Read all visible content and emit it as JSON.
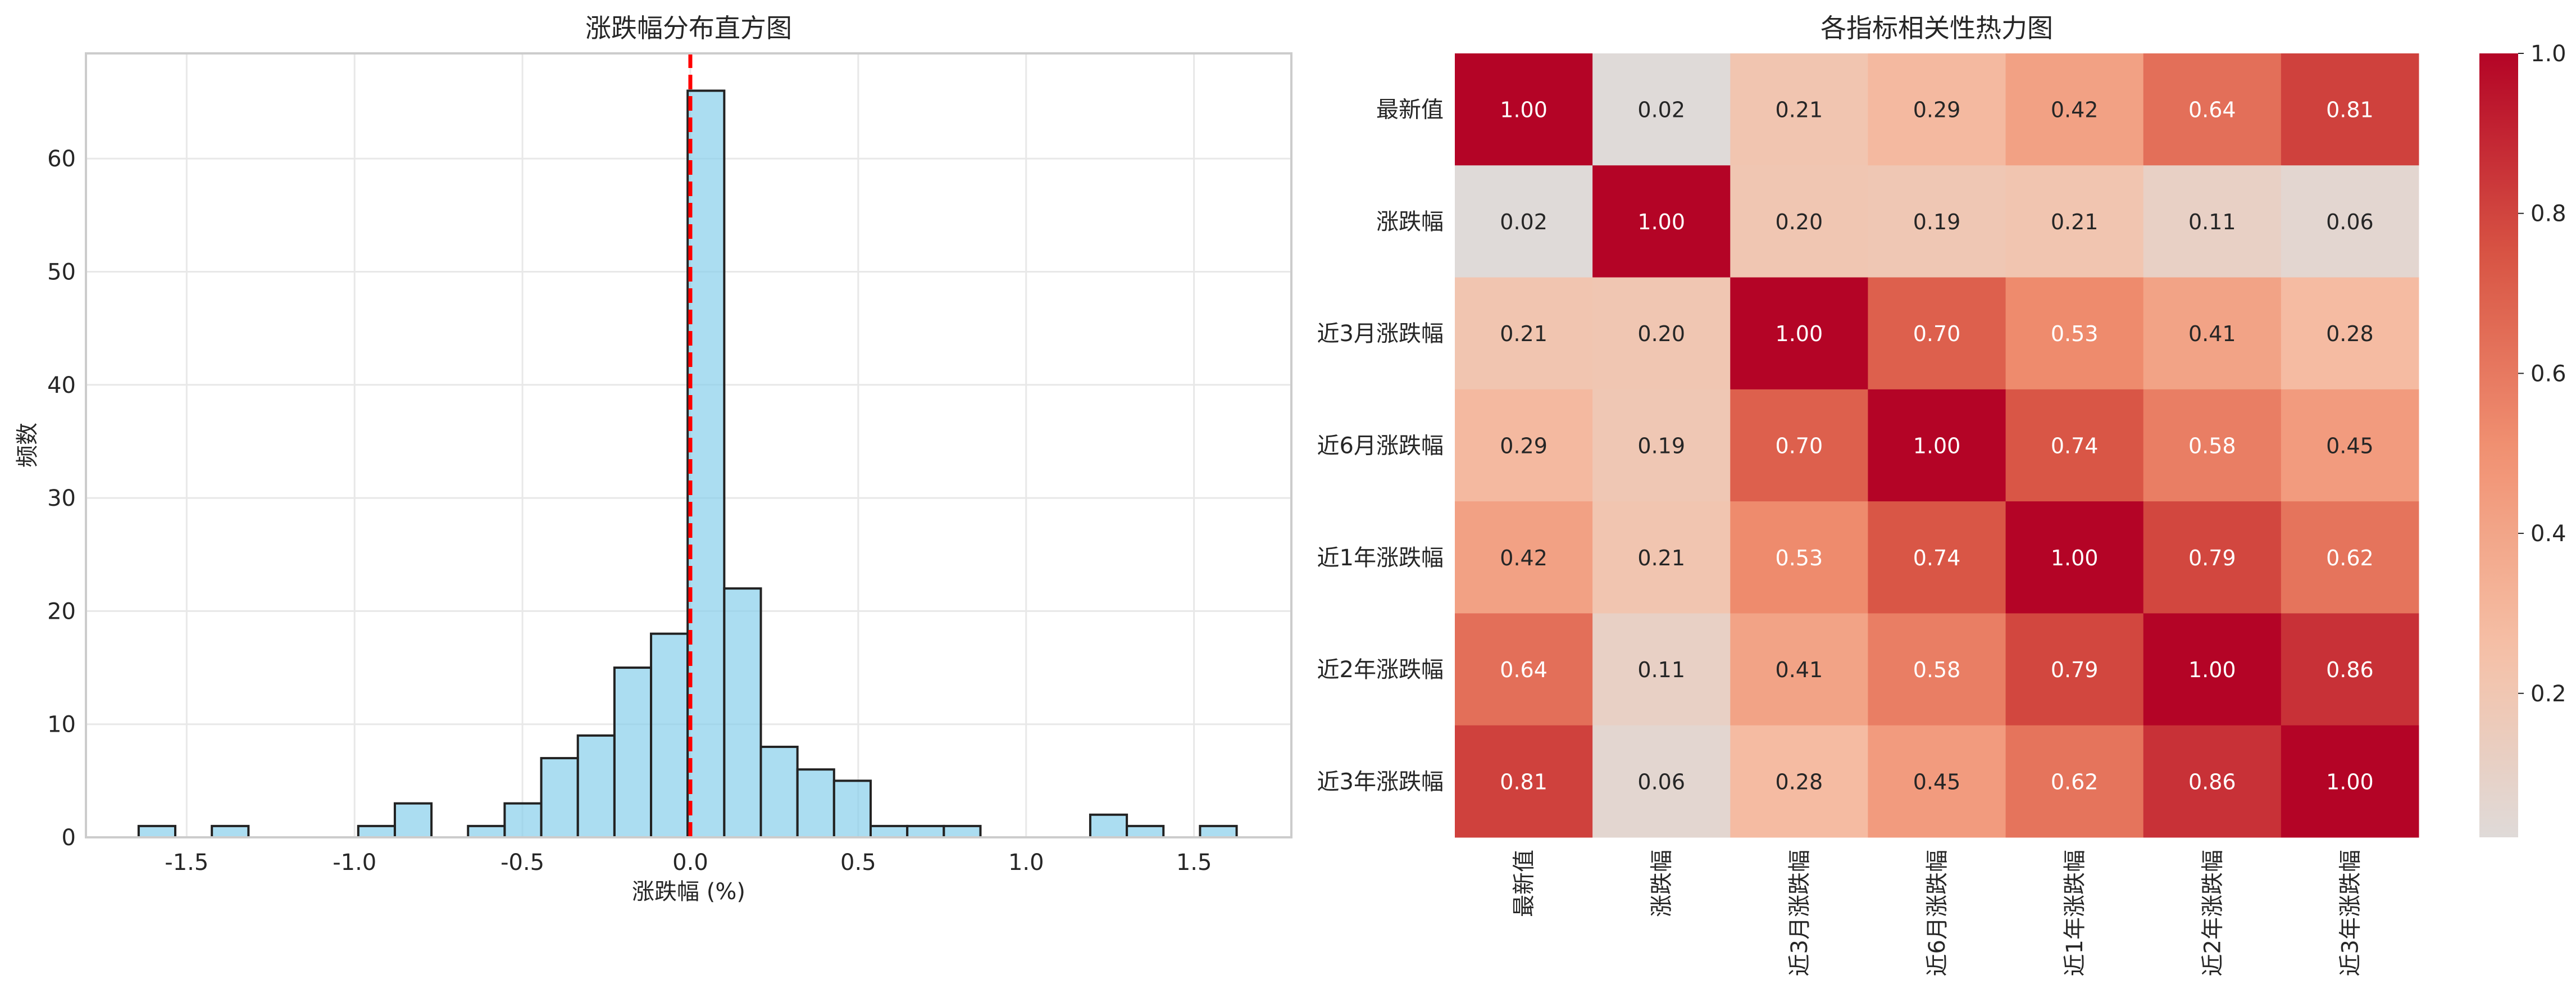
{
  "chart_data": [
    {
      "type": "bar",
      "subtype": "histogram",
      "title": "涨跌幅分布直方图",
      "xlabel": "涨跌幅 (%)",
      "ylabel": "频数",
      "bin_start": -1.643,
      "bin_width": 0.109,
      "counts": [
        1,
        0,
        1,
        0,
        0,
        0,
        1,
        3,
        0,
        1,
        3,
        7,
        9,
        15,
        18,
        66,
        22,
        8,
        6,
        5,
        1,
        1,
        1,
        0,
        0,
        0,
        2,
        1,
        0,
        1
      ],
      "xlim": [
        -1.8,
        1.79
      ],
      "ylim": [
        0,
        69.3
      ],
      "xticks": [
        -1.5,
        -1.0,
        -0.5,
        0.0,
        0.5,
        1.0,
        1.5
      ],
      "xtick_labels": [
        "-1.5",
        "-1.0",
        "-0.5",
        "0.0",
        "0.5",
        "1.0",
        "1.5"
      ],
      "yticks": [
        0,
        10,
        20,
        30,
        40,
        50,
        60
      ],
      "ytick_labels": [
        "0",
        "10",
        "20",
        "30",
        "40",
        "50",
        "60"
      ],
      "reference_line": {
        "x": 0.0,
        "style": "dashed",
        "color": "#ff0000"
      },
      "bar_color": "#87ceeb",
      "grid": true
    },
    {
      "type": "heatmap",
      "title": "各指标相关性热力图",
      "labels": [
        "最新值",
        "涨跌幅",
        "近3月涨跌幅",
        "近6月涨跌幅",
        "近1年涨跌幅",
        "近2年涨跌幅",
        "近3年涨跌幅"
      ],
      "matrix": [
        [
          1.0,
          0.02,
          0.21,
          0.29,
          0.42,
          0.64,
          0.81
        ],
        [
          0.02,
          1.0,
          0.2,
          0.19,
          0.21,
          0.11,
          0.06
        ],
        [
          0.21,
          0.2,
          1.0,
          0.7,
          0.53,
          0.41,
          0.28
        ],
        [
          0.29,
          0.19,
          0.7,
          1.0,
          0.74,
          0.58,
          0.45
        ],
        [
          0.42,
          0.21,
          0.53,
          0.74,
          1.0,
          0.79,
          0.62
        ],
        [
          0.64,
          0.11,
          0.41,
          0.58,
          0.79,
          1.0,
          0.86
        ],
        [
          0.81,
          0.06,
          0.28,
          0.45,
          0.62,
          0.86,
          1.0
        ]
      ],
      "colormap": "coolwarm",
      "center": 0,
      "vmin": 0.02,
      "vmax": 1.0,
      "colorbar_ticks": [
        0.2,
        0.4,
        0.6,
        0.8,
        1.0
      ],
      "colorbar_tick_labels": [
        "0.2",
        "0.4",
        "0.6",
        "0.8",
        "1.0"
      ],
      "colorbar_placement": "right"
    }
  ]
}
